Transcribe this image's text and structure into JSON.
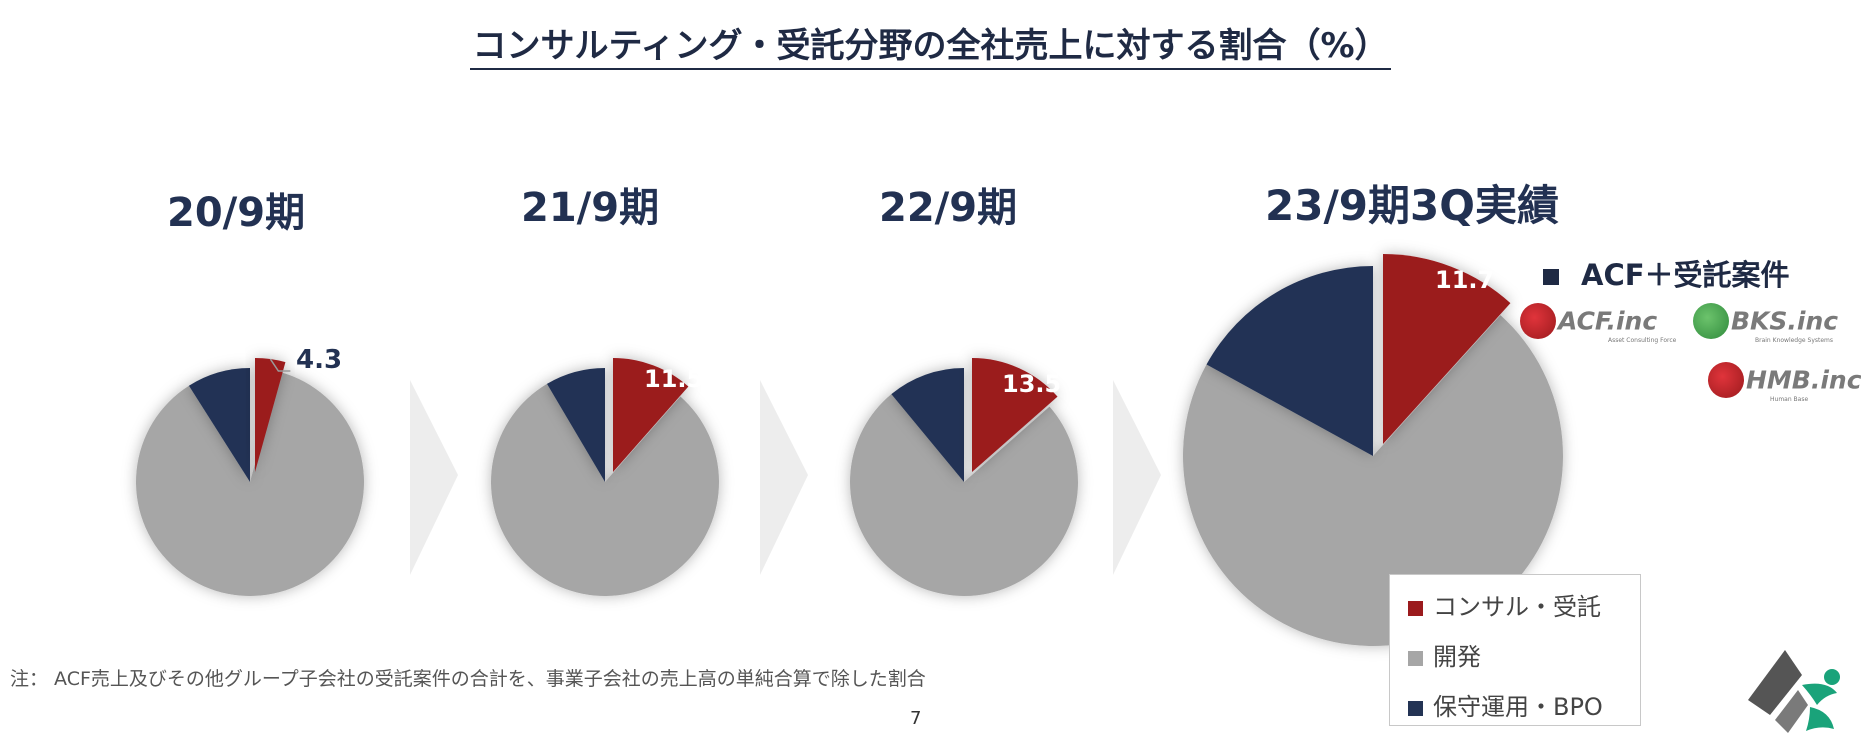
{
  "title": "コンサルティング・受託分野の全社売上に対する割合（%）",
  "chart_data": {
    "type": "pie",
    "series_names": [
      "コンサル・受託",
      "開発",
      "保守運用・BPO"
    ],
    "colors": {
      "consulting": "#9b1a1d",
      "development": "#a6a6a6",
      "maintenance": "#233354"
    },
    "pies": [
      {
        "period": "20/9期",
        "consulting": 4.3,
        "development": 86.7,
        "maintenance": 9.0,
        "label": "4.3"
      },
      {
        "period": "21/9期",
        "consulting": 11.5,
        "development": 80.0,
        "maintenance": 8.5,
        "label": "11.5"
      },
      {
        "period": "22/9期",
        "consulting": 13.5,
        "development": 75.5,
        "maintenance": 11.0,
        "label": "13.5"
      },
      {
        "period": "23/9期3Q実績",
        "consulting": 11.7,
        "development": 71.3,
        "maintenance": 17.0,
        "label": "11.7"
      }
    ]
  },
  "legend": {
    "items": [
      {
        "label": "コンサル・受託",
        "color": "#9b1a1d"
      },
      {
        "label": "開発",
        "color": "#a6a6a6"
      },
      {
        "label": "保守運用・BPO",
        "color": "#233354"
      }
    ]
  },
  "group_heading": "ACF＋受託案件",
  "logos": [
    {
      "name": "ACF.inc",
      "tagline": "Asset Consulting Force",
      "color": "#b3141b"
    },
    {
      "name": "BKS.inc",
      "tagline": "Brain Knowledge Systems",
      "color": "#3aa14a"
    },
    {
      "name": "HMB.inc",
      "tagline": "Human Base",
      "color": "#b3141b"
    }
  ],
  "note": "注：  ACF売上及びその他グループ子会社の受託案件の合計を、事業子会社の売上高の単純合算で除した割合",
  "page_number": "7"
}
